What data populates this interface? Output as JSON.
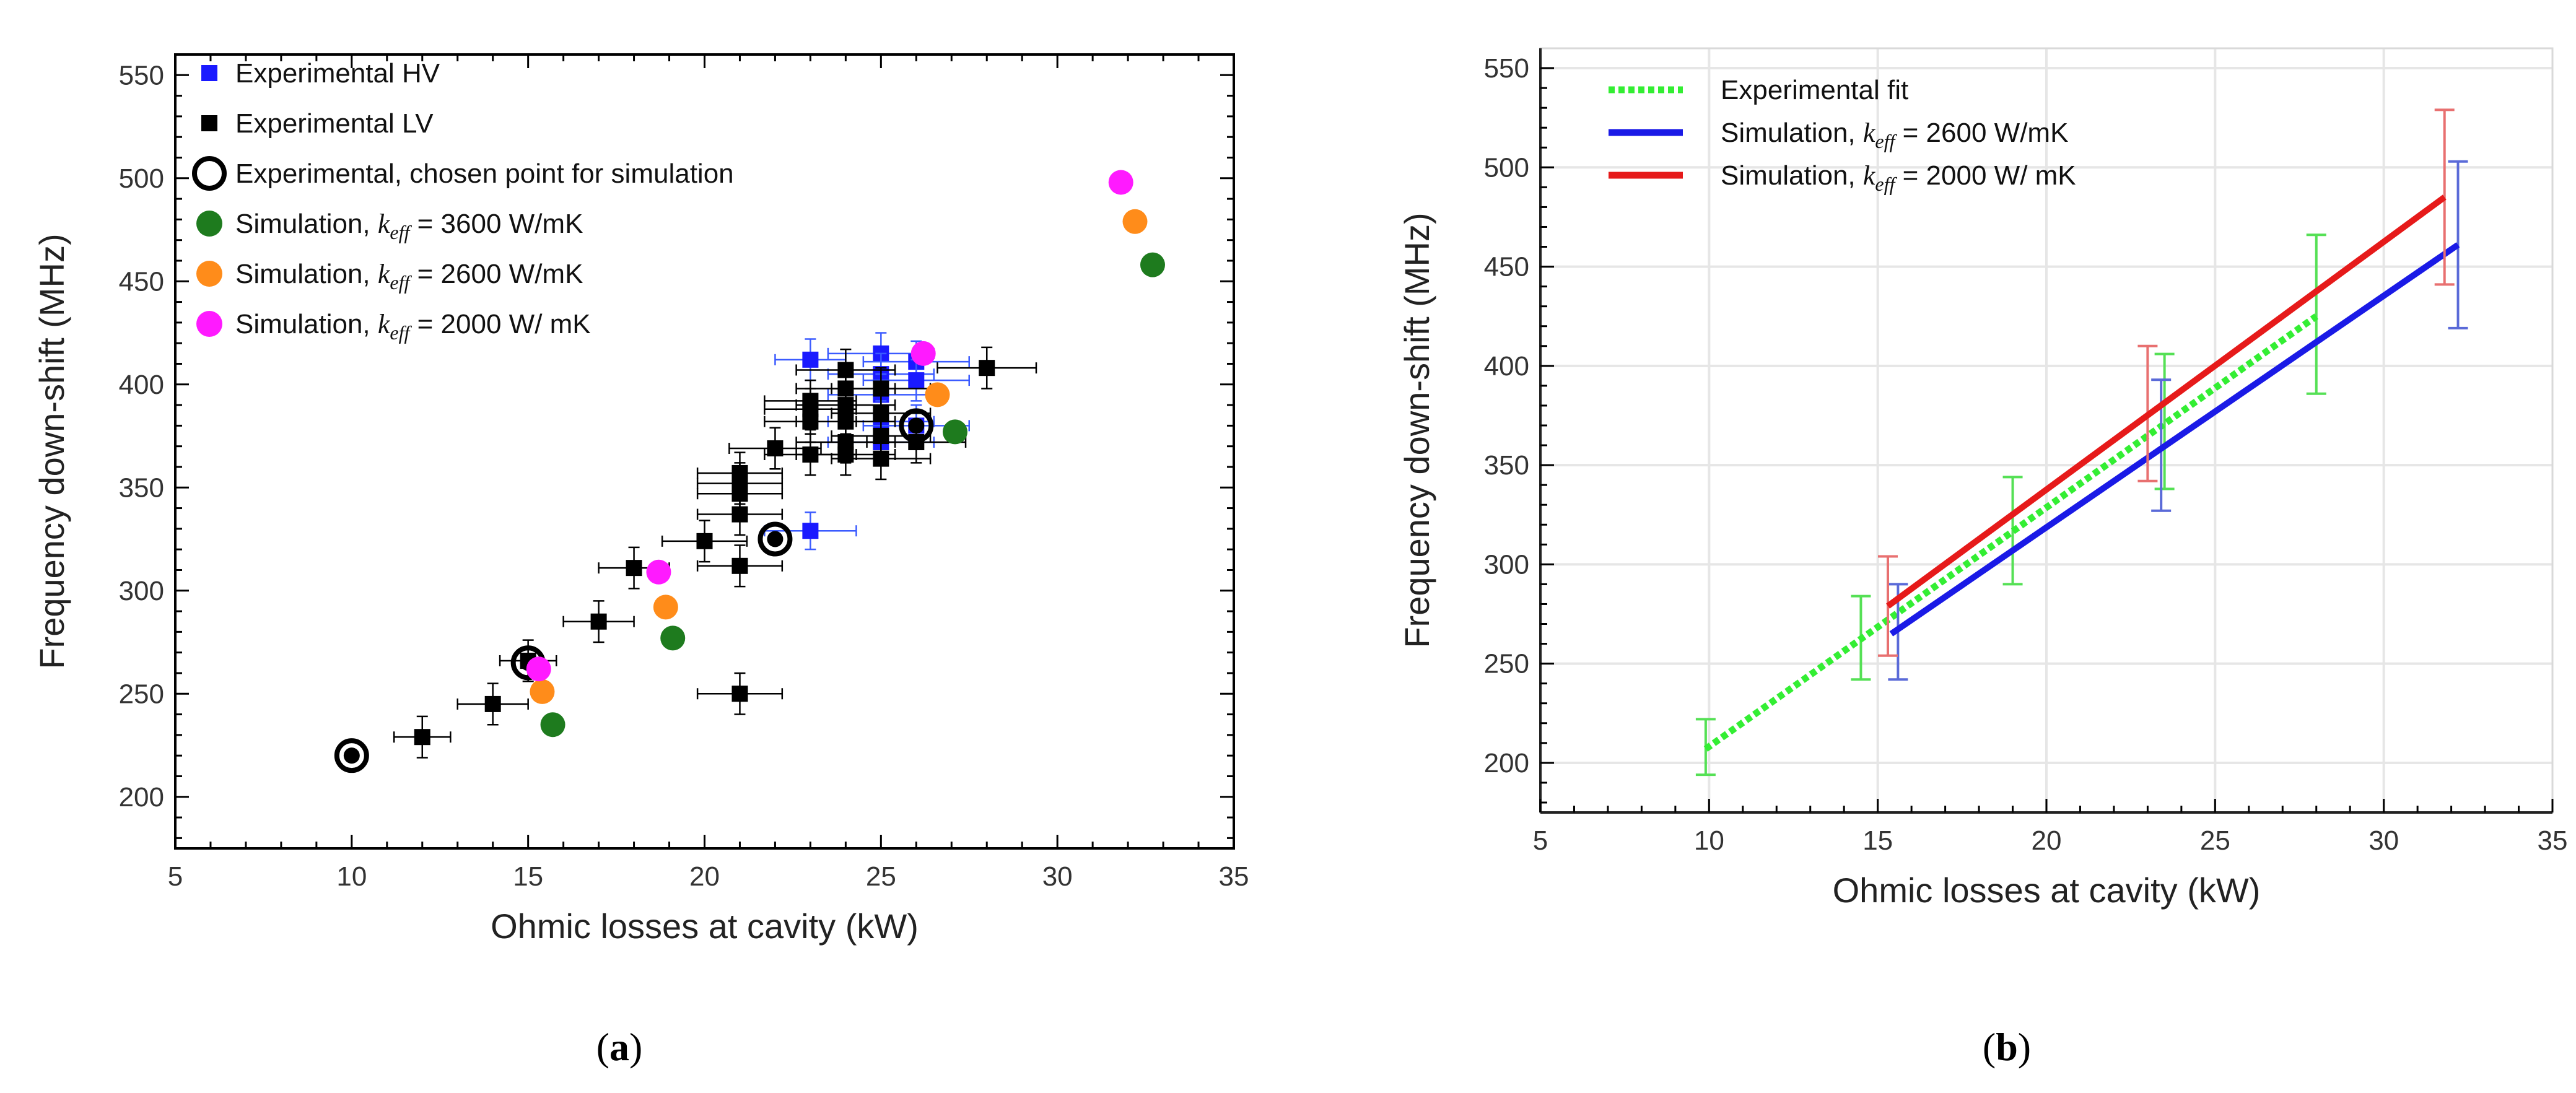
{
  "chart_data": [
    {
      "type": "scatter",
      "panel_label": "(a)",
      "xlabel": "Ohmic losses at cavity  (kW)",
      "ylabel": "Frequency down-shift  (MHz)",
      "xlim": [
        5,
        35
      ],
      "ylim": [
        175,
        560
      ],
      "xticks": [
        "5",
        "10",
        "15",
        "20",
        "25",
        "30",
        "35"
      ],
      "yticks": [
        "200",
        "250",
        "300",
        "350",
        "400",
        "450",
        "500",
        "550"
      ],
      "grid": false,
      "legend_position": "top-left",
      "series": [
        {
          "name": "Experimental HV",
          "marker": "square",
          "color": "#1a1aff",
          "points": [
            {
              "x": 23,
              "y": 412,
              "xerr": 1,
              "yerr": 10
            },
            {
              "x": 23,
              "y": 329,
              "xerr": 1.3,
              "yerr": 9
            },
            {
              "x": 25,
              "y": 415,
              "xerr": 1.5,
              "yerr": 10
            },
            {
              "x": 25,
              "y": 405,
              "xerr": 1.5,
              "yerr": 10
            },
            {
              "x": 25,
              "y": 395,
              "xerr": 1.5,
              "yerr": 10
            },
            {
              "x": 25,
              "y": 382,
              "xerr": 1.5,
              "yerr": 10
            },
            {
              "x": 25,
              "y": 372,
              "xerr": 1.5,
              "yerr": 10
            },
            {
              "x": 26,
              "y": 411,
              "xerr": 1.5,
              "yerr": 10
            },
            {
              "x": 26,
              "y": 402,
              "xerr": 1.5,
              "yerr": 10
            },
            {
              "x": 26,
              "y": 380,
              "xerr": 1.5,
              "yerr": 10
            }
          ]
        },
        {
          "name": "Experimental LV",
          "marker": "square",
          "color": "#000000",
          "points": [
            {
              "x": 12,
              "y": 229,
              "xerr": 0.8,
              "yerr": 10
            },
            {
              "x": 14,
              "y": 245,
              "xerr": 1,
              "yerr": 10
            },
            {
              "x": 15,
              "y": 266,
              "xerr": 0.8,
              "yerr": 10
            },
            {
              "x": 17,
              "y": 285,
              "xerr": 1,
              "yerr": 10
            },
            {
              "x": 18,
              "y": 311,
              "xerr": 1,
              "yerr": 10
            },
            {
              "x": 20,
              "y": 324,
              "xerr": 1.2,
              "yerr": 10
            },
            {
              "x": 21,
              "y": 250,
              "xerr": 1.2,
              "yerr": 10
            },
            {
              "x": 21,
              "y": 312,
              "xerr": 1.2,
              "yerr": 10
            },
            {
              "x": 21,
              "y": 337,
              "xerr": 1.2,
              "yerr": 10
            },
            {
              "x": 21,
              "y": 347,
              "xerr": 1.2,
              "yerr": 10
            },
            {
              "x": 21,
              "y": 352,
              "xerr": 1.2,
              "yerr": 10
            },
            {
              "x": 21,
              "y": 357,
              "xerr": 1.2,
              "yerr": 10
            },
            {
              "x": 22,
              "y": 369,
              "xerr": 1.3,
              "yerr": 10
            },
            {
              "x": 23,
              "y": 366,
              "xerr": 1.3,
              "yerr": 10
            },
            {
              "x": 23,
              "y": 382,
              "xerr": 1.3,
              "yerr": 10
            },
            {
              "x": 23,
              "y": 388,
              "xerr": 1.3,
              "yerr": 10
            },
            {
              "x": 23,
              "y": 392,
              "xerr": 1.3,
              "yerr": 10
            },
            {
              "x": 24,
              "y": 366,
              "xerr": 1.4,
              "yerr": 10
            },
            {
              "x": 24,
              "y": 372,
              "xerr": 1.4,
              "yerr": 10
            },
            {
              "x": 24,
              "y": 382,
              "xerr": 1.4,
              "yerr": 10
            },
            {
              "x": 24,
              "y": 390,
              "xerr": 1.4,
              "yerr": 10
            },
            {
              "x": 24,
              "y": 398,
              "xerr": 1.4,
              "yerr": 10
            },
            {
              "x": 24,
              "y": 407,
              "xerr": 1.4,
              "yerr": 10
            },
            {
              "x": 25,
              "y": 364,
              "xerr": 1.4,
              "yerr": 10
            },
            {
              "x": 25,
              "y": 375,
              "xerr": 1.4,
              "yerr": 10
            },
            {
              "x": 25,
              "y": 386,
              "xerr": 1.4,
              "yerr": 10
            },
            {
              "x": 25,
              "y": 398,
              "xerr": 1.4,
              "yerr": 10
            },
            {
              "x": 26,
              "y": 372,
              "xerr": 1.4,
              "yerr": 10
            },
            {
              "x": 28,
              "y": 408,
              "xerr": 1.4,
              "yerr": 10
            }
          ]
        },
        {
          "name": "Experimental, chosen point for simulation",
          "marker": "open-circle",
          "color": "#000000",
          "points": [
            {
              "x": 10,
              "y": 220
            },
            {
              "x": 15,
              "y": 265
            },
            {
              "x": 22,
              "y": 325
            },
            {
              "x": 26,
              "y": 380
            }
          ]
        },
        {
          "name": "Simulation, k_eff = 3600 W/mK",
          "marker": "circle",
          "color": "#1e7b1e",
          "points": [
            {
              "x": 15.7,
              "y": 235
            },
            {
              "x": 19.1,
              "y": 277
            },
            {
              "x": 27.1,
              "y": 377
            },
            {
              "x": 32.7,
              "y": 458
            }
          ]
        },
        {
          "name": "Simulation, k_eff = 2600 W/mK",
          "marker": "circle",
          "color": "#ff8c1a",
          "points": [
            {
              "x": 15.4,
              "y": 251
            },
            {
              "x": 18.9,
              "y": 292
            },
            {
              "x": 26.6,
              "y": 395
            },
            {
              "x": 32.2,
              "y": 479
            }
          ]
        },
        {
          "name": "Simulation, k_eff = 2000 W/ mK",
          "marker": "circle",
          "color": "#ff1aff",
          "points": [
            {
              "x": 15.3,
              "y": 262
            },
            {
              "x": 18.7,
              "y": 309
            },
            {
              "x": 26.2,
              "y": 415
            },
            {
              "x": 31.8,
              "y": 498
            }
          ]
        }
      ]
    },
    {
      "type": "line",
      "panel_label": "(b)",
      "xlabel": "Ohmic losses at cavity  (kW)",
      "ylabel": "Frequency down-shift  (MHz)",
      "xlim": [
        5,
        35
      ],
      "ylim": [
        175,
        560
      ],
      "xticks": [
        "5",
        "10",
        "15",
        "20",
        "25",
        "30",
        "35"
      ],
      "yticks": [
        "200",
        "250",
        "300",
        "350",
        "400",
        "450",
        "500",
        "550"
      ],
      "grid": true,
      "legend_position": "top-left",
      "series": [
        {
          "name": "Experimental fit",
          "style": "dotted",
          "color": "#33ee33",
          "x": [
            9.9,
            28
          ],
          "y": [
            207,
            425
          ],
          "errorbars": [
            {
              "x": 9.9,
              "y": 208,
              "err": 14
            },
            {
              "x": 14.5,
              "y": 263,
              "err": 21
            },
            {
              "x": 19,
              "y": 317,
              "err": 27
            },
            {
              "x": 23.5,
              "y": 372,
              "err": 34
            },
            {
              "x": 28,
              "y": 426,
              "err": 40
            }
          ]
        },
        {
          "name": "Simulation, k_eff = 2600 W/mK",
          "style": "solid",
          "color": "#1a1ae6",
          "x": [
            15.4,
            32.2
          ],
          "y": [
            265,
            461
          ],
          "errorbars": [
            {
              "x": 15.6,
              "y": 266,
              "err": 24
            },
            {
              "x": 23.4,
              "y": 360,
              "err": 33
            },
            {
              "x": 32.2,
              "y": 461,
              "err": 42
            }
          ]
        },
        {
          "name": "Simulation, k_eff = 2000 W/ mK",
          "style": "solid",
          "color": "#e61a1a",
          "x": [
            15.3,
            31.8
          ],
          "y": [
            279,
            485
          ],
          "errorbars": [
            {
              "x": 15.3,
              "y": 279,
              "err": 25
            },
            {
              "x": 23,
              "y": 376,
              "err": 34
            },
            {
              "x": 31.8,
              "y": 485,
              "err": 44
            }
          ]
        }
      ]
    }
  ],
  "legend_text": {
    "a": [
      {
        "pre": "Experimental HV"
      },
      {
        "pre": "Experimental LV"
      },
      {
        "pre": "Experimental, chosen point for simulation"
      },
      {
        "pre": "Simulation, ",
        "sym": "k",
        "sub": "eff",
        "post": " = 3600 W/mK"
      },
      {
        "pre": "Simulation, ",
        "sym": "k",
        "sub": "eff",
        "post": " = 2600 W/mK"
      },
      {
        "pre": "Simulation, ",
        "sym": "k",
        "sub": "eff",
        "post": " = 2000 W/ mK"
      }
    ],
    "b": [
      {
        "pre": "Experimental fit"
      },
      {
        "pre": "Simulation, ",
        "sym": "k",
        "sub": "eff",
        "post": " = 2600 W/mK"
      },
      {
        "pre": "Simulation, ",
        "sym": "k",
        "sub": "eff",
        "post": " = 2000 W/ mK"
      }
    ]
  }
}
